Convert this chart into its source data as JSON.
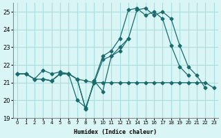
{
  "xlabel": "Humidex (Indice chaleur)",
  "ylabel": "",
  "xlim": [
    -0.5,
    23.5
  ],
  "ylim": [
    19,
    25.5
  ],
  "yticks": [
    19,
    20,
    21,
    22,
    23,
    24,
    25
  ],
  "xticks": [
    0,
    1,
    2,
    3,
    4,
    5,
    6,
    7,
    8,
    9,
    10,
    11,
    12,
    13,
    14,
    15,
    16,
    17,
    18,
    19,
    20,
    21,
    22,
    23
  ],
  "bg_color": "#d9f5f5",
  "grid_color": "#aadddd",
  "line_color": "#1a6b6b",
  "lines": [
    {
      "x": [
        0,
        1,
        2,
        3,
        4,
        5,
        6,
        7,
        8,
        9,
        10,
        11,
        12,
        13,
        14,
        15,
        16,
        17,
        18,
        19,
        20,
        21,
        22
      ],
      "y": [
        21.5,
        21.5,
        21.2,
        21.2,
        21.1,
        21.5,
        21.5,
        21.2,
        19.5,
        21.1,
        20.5,
        22.5,
        22.8,
        23.5,
        25.1,
        25.2,
        24.8,
        25.0,
        24.6,
        23.1,
        21.9,
        21.4,
        20.7
      ]
    },
    {
      "x": [
        0,
        1,
        2,
        3,
        4,
        5,
        6,
        7,
        8,
        9,
        10,
        11,
        12,
        13
      ],
      "y": [
        21.5,
        21.5,
        21.2,
        21.7,
        21.5,
        21.6,
        21.5,
        20.0,
        19.6,
        21.0,
        22.3,
        22.5,
        23.0,
        23.5
      ]
    },
    {
      "x": [
        0,
        1,
        2,
        3,
        4,
        5,
        6,
        7,
        8,
        9,
        10,
        11,
        12,
        13,
        14,
        15,
        16,
        17,
        18,
        19,
        20,
        21,
        22,
        23
      ],
      "y": [
        21.5,
        21.5,
        21.2,
        21.2,
        21.1,
        21.5,
        21.5,
        21.2,
        21.1,
        21.0,
        21.0,
        21.0,
        21.0,
        21.0,
        21.0,
        21.0,
        21.0,
        21.0,
        21.0,
        21.0,
        21.0,
        21.0,
        21.0,
        20.7
      ]
    },
    {
      "x": [
        3,
        4,
        5,
        6,
        7,
        8,
        9,
        10,
        11,
        12,
        13,
        14,
        15,
        16,
        17,
        18,
        19,
        20
      ],
      "y": [
        21.2,
        21.1,
        21.5,
        21.5,
        21.2,
        19.5,
        21.1,
        22.5,
        22.8,
        23.5,
        25.1,
        25.2,
        24.8,
        25.0,
        24.6,
        23.1,
        21.9,
        21.4
      ]
    }
  ]
}
